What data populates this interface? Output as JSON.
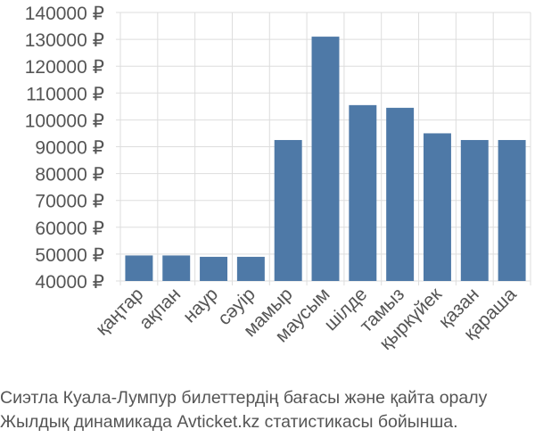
{
  "chart_data": {
    "type": "bar",
    "categories": [
      "қаңтар",
      "ақпан",
      "наур",
      "сәуір",
      "мамыр",
      "маусым",
      "шілде",
      "тамыз",
      "қыркүйек",
      "қазан",
      "қараша"
    ],
    "values": [
      49500,
      49500,
      49000,
      49000,
      92500,
      131000,
      105500,
      104500,
      95000,
      92500,
      92500
    ],
    "yticks": [
      "40000 ₽",
      "50000 ₽",
      "60000 ₽",
      "70000 ₽",
      "80000 ₽",
      "90000 ₽",
      "100000 ₽",
      "110000 ₽",
      "120000 ₽",
      "130000 ₽",
      "140000 ₽"
    ],
    "ylim": [
      40000,
      140000
    ],
    "title": "",
    "xlabel": "",
    "ylabel": "",
    "grid": true,
    "bar_color": "#4e79a7"
  },
  "caption": {
    "line1": "Сиэтла Куала-Лумпур билеттердің бағасы және қайта оралу",
    "line2": "Жылдық динамикада Avticket.kz статистикасы бойынша."
  }
}
